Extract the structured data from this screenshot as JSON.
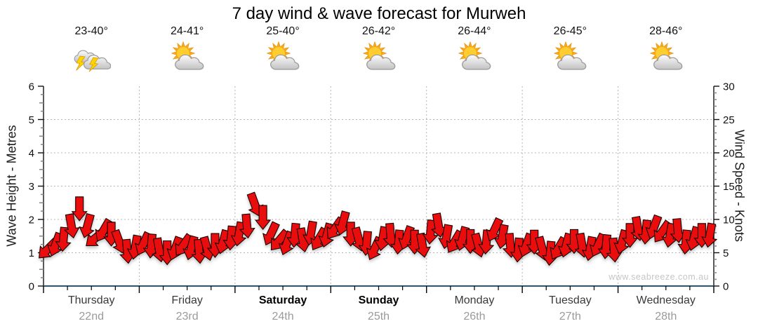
{
  "title": "7 day wind & wave forecast for Murweh",
  "watermark": "www.seabreeze.com.au",
  "axes": {
    "left_title": "Wave Height - Metres",
    "right_title": "Wind Speed - Knots",
    "left_tick_labels": [
      0,
      1,
      2,
      3,
      4,
      5,
      6
    ],
    "right_tick_labels": [
      0,
      5,
      10,
      15,
      20,
      25,
      30
    ]
  },
  "days": [
    {
      "name": "Thursday",
      "date": "22nd",
      "temp": "23-40°",
      "icon": "storm",
      "weekend": false
    },
    {
      "name": "Friday",
      "date": "23rd",
      "temp": "24-41°",
      "icon": "partly-cloudy",
      "weekend": false
    },
    {
      "name": "Saturday",
      "date": "24th",
      "temp": "25-40°",
      "icon": "partly-cloudy",
      "weekend": true
    },
    {
      "name": "Sunday",
      "date": "25th",
      "temp": "26-42°",
      "icon": "partly-cloudy",
      "weekend": true
    },
    {
      "name": "Monday",
      "date": "26th",
      "temp": "26-44°",
      "icon": "partly-cloudy",
      "weekend": false
    },
    {
      "name": "Tuesday",
      "date": "27th",
      "temp": "26-45°",
      "icon": "partly-cloudy",
      "weekend": false
    },
    {
      "name": "Wednesday",
      "date": "28th",
      "temp": "28-46°",
      "icon": "partly-cloudy",
      "weekend": false
    }
  ],
  "chart_data": {
    "type": "wind-arrows",
    "title": "7 day wind & wave forecast for Murweh",
    "days_span": 7,
    "sample_interval_hours": 2,
    "left_axis": {
      "label": "Wave Height - Metres",
      "range": [
        0,
        6
      ],
      "major_step": 1,
      "minor_step": 0.25
    },
    "right_axis": {
      "label": "Wind Speed - Knots",
      "range": [
        0,
        30
      ],
      "major_step": 5,
      "minor_step": 1
    },
    "grid": "dotted, horizontal at each metre, vertical at day boundaries",
    "wave_height_constant_m": 0,
    "wind_knots": [
      5.5,
      6.2,
      7.0,
      9.0,
      11.6,
      9.0,
      7.2,
      8.3,
      7.8,
      6.6,
      5.2,
      5.8,
      6.3,
      6.0,
      5.4,
      5.0,
      5.6,
      6.1,
      5.7,
      5.2,
      5.6,
      6.1,
      6.6,
      7.2,
      7.8,
      9.0,
      12.2,
      10.3,
      7.8,
      6.8,
      6.4,
      7.6,
      6.9,
      7.9,
      7.0,
      7.6,
      8.6,
      9.4,
      7.8,
      7.0,
      6.4,
      5.6,
      7.1,
      7.6,
      6.6,
      7.2,
      6.6,
      6.1,
      8.1,
      9.1,
      7.4,
      6.6,
      7.1,
      6.7,
      6.1,
      6.6,
      8.4,
      7.4,
      6.1,
      5.4,
      6.1,
      6.6,
      5.6,
      4.9,
      5.6,
      6.1,
      6.7,
      6.1,
      5.6,
      6.1,
      5.9,
      5.4,
      6.6,
      7.6,
      8.6,
      8.1,
      8.8,
      8.1,
      7.6,
      8.3,
      6.6,
      7.1,
      7.6,
      7.6
    ],
    "wind_dir_deg": [
      225,
      200,
      185,
      170,
      180,
      195,
      230,
      210,
      180,
      160,
      175,
      190,
      205,
      185,
      170,
      180,
      200,
      215,
      195,
      175,
      165,
      180,
      195,
      185,
      190,
      175,
      160,
      180,
      205,
      220,
      200,
      185,
      170,
      190,
      210,
      195,
      215,
      195,
      180,
      165,
      185,
      205,
      190,
      175,
      185,
      200,
      180,
      170,
      185,
      170,
      190,
      210,
      195,
      180,
      165,
      185,
      205,
      190,
      175,
      185,
      200,
      180,
      165,
      185,
      210,
      195,
      180,
      170,
      190,
      205,
      185,
      175,
      195,
      180,
      170,
      185,
      200,
      215,
      190,
      175,
      185,
      195,
      180,
      190
    ]
  },
  "colors": {
    "arrow_fill": "#ea0c0c",
    "arrow_outline": "#1c0000",
    "baseline": "#26587a",
    "grid": "#b5b5b5",
    "axis": "#111111",
    "minor_tick": "#8a8a8a",
    "tick_label": "#111111"
  }
}
